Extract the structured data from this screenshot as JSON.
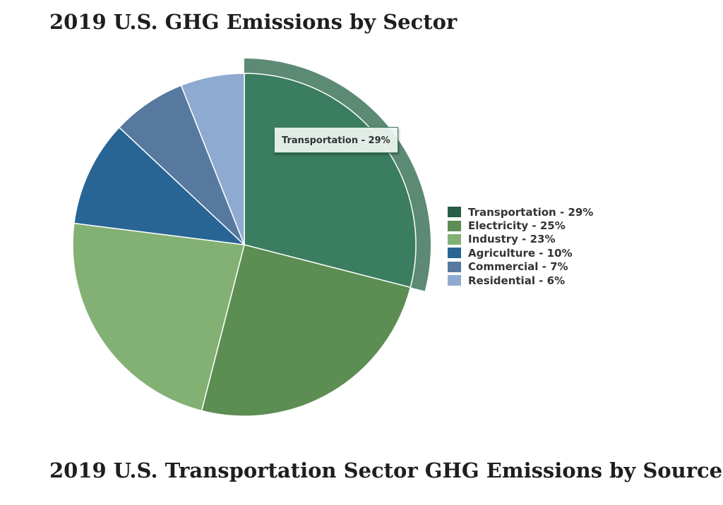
{
  "page": {
    "title": "2019 U.S. GHG Emissions by Sector",
    "next_section_title": "2019 U.S. Transportation Sector GHG Emissions by Source"
  },
  "tooltip": {
    "text": "Transportation - 29%"
  },
  "chart_data": {
    "type": "pie",
    "title": "2019 U.S. GHG Emissions by Sector",
    "unit": "%",
    "legend_position": "right",
    "highlighted_slice": "Transportation",
    "slices": [
      {
        "name": "Transportation",
        "value": 29,
        "label": "Transportation - 29%",
        "color": "#3a7d60",
        "legend_color": "#285e45"
      },
      {
        "name": "Electricity",
        "value": 25,
        "label": "Electricity - 25%",
        "color": "#5c8d52",
        "legend_color": "#5c8d52"
      },
      {
        "name": "Industry",
        "value": 23,
        "label": "Industry - 23%",
        "color": "#82b173",
        "legend_color": "#82b173"
      },
      {
        "name": "Agriculture",
        "value": 10,
        "label": "Agriculture - 10%",
        "color": "#286595",
        "legend_color": "#286595"
      },
      {
        "name": "Commercial",
        "value": 7,
        "label": "Commercial - 7%",
        "color": "#57799f",
        "legend_color": "#57799f"
      },
      {
        "name": "Residential",
        "value": 6,
        "label": "Residential - 6%",
        "color": "#8eaad0",
        "legend_color": "#8eaad0"
      }
    ],
    "hover_halo_color": "#5c8a74"
  }
}
